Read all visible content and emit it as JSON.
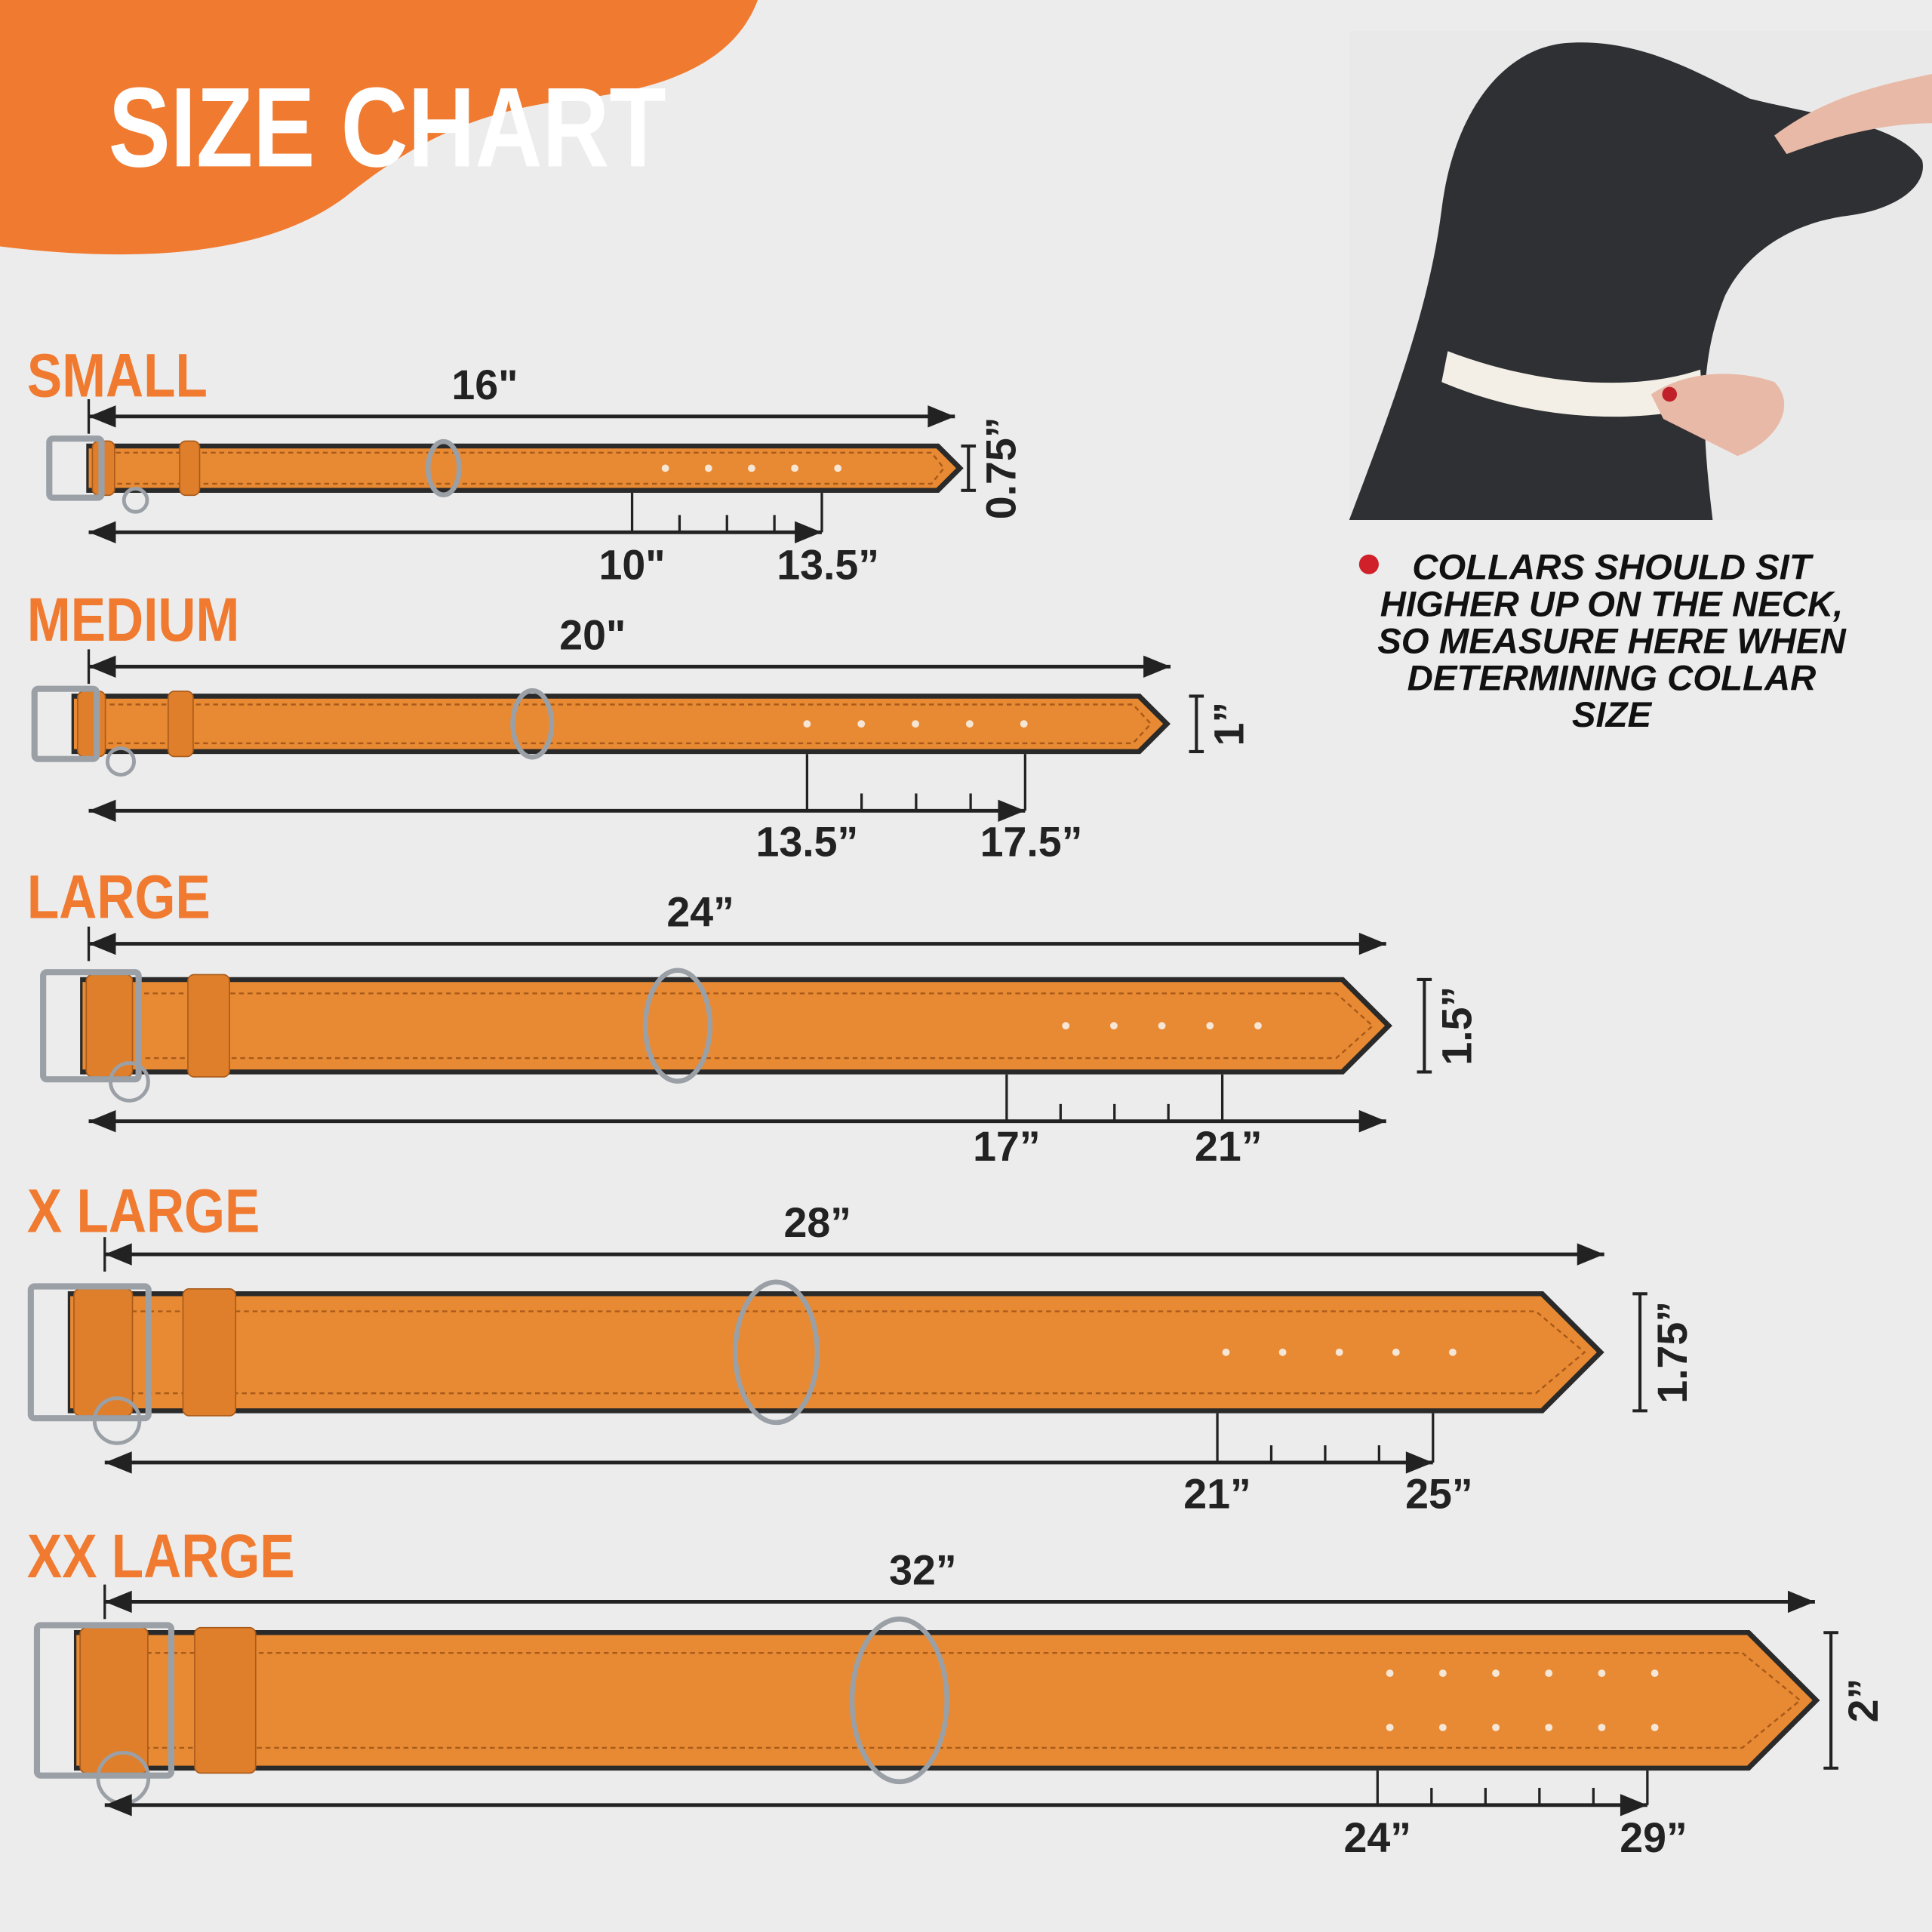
{
  "header": {
    "title": "SIZE CHART"
  },
  "sizes": [
    {
      "name": "SMALL",
      "length": "16\"",
      "width": "0.75”",
      "min": "10\"",
      "max": "13.5”"
    },
    {
      "name": "MEDIUM",
      "length": "20\"",
      "width": "1”",
      "min": "13.5”",
      "max": "17.5”"
    },
    {
      "name": "LARGE",
      "length": "24”",
      "width": "1.5”",
      "min": "17”",
      "max": "21”"
    },
    {
      "name": "X LARGE",
      "length": "28”",
      "width": "1.75”",
      "min": "21”",
      "max": "25”"
    },
    {
      "name": "XX LARGE",
      "length": "32”",
      "width": "2”",
      "min": "24”",
      "max": "29”"
    }
  ],
  "note": {
    "lines": [
      "COLLARS SHOULD SIT",
      "HIGHER UP ON THE NECK,",
      "SO MEASURE HERE WHEN",
      "DETERMINING COLLAR",
      "SIZE"
    ]
  }
}
